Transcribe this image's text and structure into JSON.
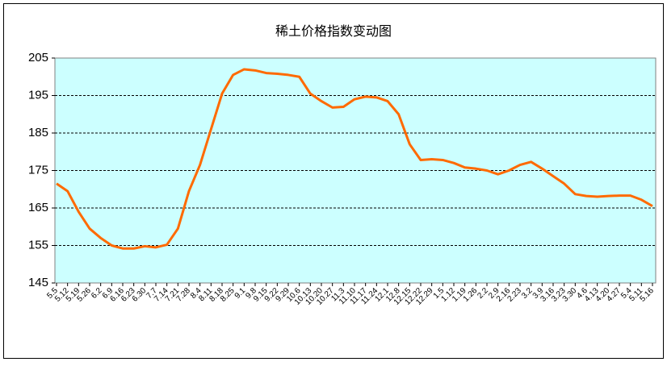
{
  "chart_data": {
    "type": "line",
    "title": "稀土价格指数变动图",
    "categories": [
      "5.5",
      "5.12",
      "5.19",
      "5.26",
      "6.2",
      "6.9",
      "6.16",
      "6.23",
      "6.30",
      "7.7",
      "7.14",
      "7.21",
      "7.28",
      "8.4",
      "8.11",
      "8.18",
      "8.25",
      "9.1",
      "9.8",
      "9.15",
      "9.22",
      "9.29",
      "10.6",
      "10.13",
      "10.20",
      "10.27",
      "11.3",
      "11.10",
      "11.17",
      "11.24",
      "12.1",
      "12.8",
      "12.15",
      "12.22",
      "12.29",
      "1.5",
      "1.12",
      "1.19",
      "1.26",
      "2.2",
      "2.9",
      "2.16",
      "2.23",
      "3.2",
      "3.9",
      "3.16",
      "3.23",
      "3.30",
      "4.6",
      "4.13",
      "4.20",
      "4.27",
      "5.4",
      "5.11",
      "5.16"
    ],
    "series": [
      {
        "name": "稀土价格指数",
        "color": "#ff6a00",
        "values": [
          171.5,
          169.5,
          164,
          159.5,
          157,
          155,
          154.2,
          154.2,
          154.8,
          154.5,
          155.2,
          159.5,
          169.5,
          176.5,
          186,
          195.5,
          200.5,
          202,
          201.7,
          201,
          200.8,
          200.5,
          200,
          195.5,
          193.5,
          191.8,
          192,
          194,
          194.7,
          194.5,
          193.5,
          190,
          182,
          177.8,
          178,
          177.8,
          177,
          175.8,
          175.5,
          175,
          174,
          175,
          176.5,
          177.3,
          175.5,
          173.5,
          171.5,
          168.7,
          168.2,
          168,
          168.2,
          168.3,
          168.3,
          167.2,
          165.5
        ]
      }
    ],
    "ylim": [
      145,
      205
    ],
    "yticks": [
      145,
      155,
      165,
      175,
      185,
      195,
      205
    ],
    "grid": true
  }
}
